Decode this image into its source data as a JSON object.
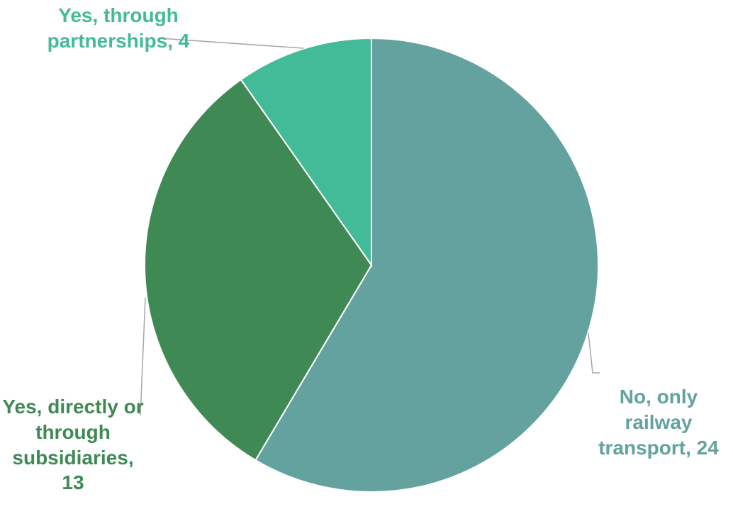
{
  "chart_data": {
    "type": "pie",
    "title": "",
    "slices": [
      {
        "label": "No, only railway transport",
        "value": 24,
        "color": "#63A29E",
        "data_label": "No, only railway transport, 24"
      },
      {
        "label": "Yes, directly or through subsidiaries",
        "value": 13,
        "color": "#3F8954",
        "data_label": "Yes, directly or through subsidiaries, 13"
      },
      {
        "label": "Yes, through partnerships",
        "value": 4,
        "color": "#43BA98",
        "data_label": "Yes, through partnerships, 4"
      }
    ],
    "start_angle": "12 o'clock",
    "direction": "clockwise",
    "legend": "none",
    "label_text_color": "matches slice color",
    "leader_line_color": "#A6A6A6"
  }
}
